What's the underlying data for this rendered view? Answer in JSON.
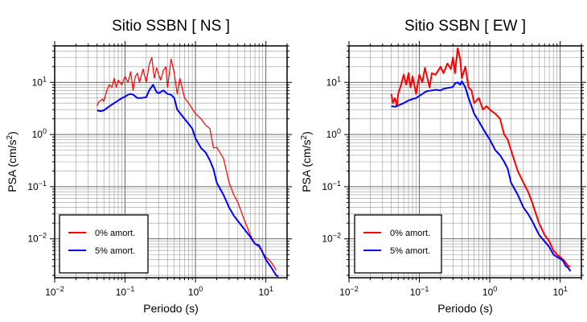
{
  "chart_data": [
    {
      "type": "line",
      "title": "Sitio SSBN [ NS ]",
      "xlabel": "Periodo (s)",
      "ylabel": "PSA (cm/s²)",
      "xscale": "log",
      "yscale": "log",
      "xlim": [
        0.01,
        20
      ],
      "ylim": [
        0.0018,
        50
      ],
      "grid": true,
      "legend_position": "bottom-left",
      "xticks": [
        {
          "base": "10",
          "exp": "−2",
          "value": 0.01
        },
        {
          "base": "10",
          "exp": "−1",
          "value": 0.1
        },
        {
          "base": "10",
          "exp": "0",
          "value": 1
        },
        {
          "base": "10",
          "exp": "1",
          "value": 10
        }
      ],
      "yticks": [
        {
          "base": "10",
          "exp": "−2",
          "value": 0.01
        },
        {
          "base": "10",
          "exp": "−1",
          "value": 0.1
        },
        {
          "base": "10",
          "exp": "0",
          "value": 1
        },
        {
          "base": "10",
          "exp": "1",
          "value": 10
        }
      ],
      "series": [
        {
          "name": "0% amort.",
          "color": "#ff0000",
          "width": 1.2,
          "x": [
            0.04,
            0.042,
            0.045,
            0.048,
            0.05,
            0.055,
            0.06,
            0.065,
            0.07,
            0.075,
            0.08,
            0.09,
            0.1,
            0.11,
            0.12,
            0.13,
            0.14,
            0.15,
            0.16,
            0.18,
            0.2,
            0.22,
            0.24,
            0.26,
            0.28,
            0.3,
            0.32,
            0.35,
            0.38,
            0.4,
            0.42,
            0.45,
            0.5,
            0.55,
            0.6,
            0.7,
            0.8,
            1.0,
            1.2,
            1.4,
            1.6,
            1.8,
            2.0,
            2.5,
            3.0,
            3.5,
            4.0,
            5.0,
            6.0,
            7.0,
            8.0,
            9.0,
            10.0,
            11.0,
            12.0,
            13.0,
            14.0
          ],
          "y": [
            3.5,
            4.2,
            4.5,
            4.8,
            4.3,
            7.0,
            9.0,
            8.0,
            12.0,
            8.0,
            11.0,
            9.0,
            13.0,
            10.0,
            16.0,
            7.0,
            13.0,
            15.0,
            10.0,
            18.0,
            10.0,
            22.0,
            30.0,
            12.0,
            19.0,
            14.0,
            11.0,
            17.0,
            20.0,
            8.0,
            13.0,
            28.0,
            15.0,
            6.0,
            12.0,
            5.0,
            4.0,
            2.5,
            2.0,
            1.5,
            1.3,
            0.55,
            0.57,
            0.35,
            0.12,
            0.07,
            0.05,
            0.022,
            0.012,
            0.008,
            0.007,
            0.0055,
            0.0045,
            0.004,
            0.0035,
            0.003,
            0.0025
          ]
        },
        {
          "name": "5% amort.",
          "color": "#0000ff",
          "width": 2,
          "x": [
            0.04,
            0.045,
            0.05,
            0.06,
            0.07,
            0.08,
            0.09,
            0.1,
            0.11,
            0.12,
            0.13,
            0.15,
            0.17,
            0.2,
            0.22,
            0.25,
            0.28,
            0.3,
            0.35,
            0.4,
            0.45,
            0.5,
            0.55,
            0.6,
            0.7,
            0.8,
            0.9,
            1.0,
            1.2,
            1.4,
            1.6,
            1.8,
            2.0,
            2.5,
            3.0,
            3.5,
            4.0,
            5.0,
            6.0,
            7.0,
            8.0,
            9.0,
            10.0,
            12.0,
            14.0,
            15.0
          ],
          "y": [
            2.9,
            2.8,
            2.9,
            3.5,
            4.0,
            4.5,
            5.0,
            5.3,
            5.8,
            6.0,
            5.8,
            5.0,
            5.0,
            5.2,
            7.0,
            9.0,
            6.5,
            6.2,
            7.0,
            6.0,
            5.8,
            5.0,
            3.0,
            2.6,
            2.0,
            1.6,
            1.3,
            0.85,
            0.55,
            0.45,
            0.32,
            0.22,
            0.12,
            0.07,
            0.04,
            0.028,
            0.022,
            0.015,
            0.011,
            0.008,
            0.0075,
            0.0055,
            0.004,
            0.0028,
            0.002,
            0.0019
          ]
        }
      ]
    },
    {
      "type": "line",
      "title": "Sitio SSBN [ EW ]",
      "xlabel": "Periodo (s)",
      "ylabel": "PSA (cm/s²)",
      "xscale": "log",
      "yscale": "log",
      "xlim": [
        0.01,
        20
      ],
      "ylim": [
        0.0018,
        50
      ],
      "grid": true,
      "legend_position": "bottom-left",
      "xticks": [
        {
          "base": "10",
          "exp": "−2",
          "value": 0.01
        },
        {
          "base": "10",
          "exp": "−1",
          "value": 0.1
        },
        {
          "base": "10",
          "exp": "0",
          "value": 1
        },
        {
          "base": "10",
          "exp": "1",
          "value": 10
        }
      ],
      "yticks": [
        {
          "base": "10",
          "exp": "−2",
          "value": 0.01
        },
        {
          "base": "10",
          "exp": "−1",
          "value": 0.1
        },
        {
          "base": "10",
          "exp": "0",
          "value": 1
        },
        {
          "base": "10",
          "exp": "1",
          "value": 10
        }
      ],
      "series": [
        {
          "name": "0% amort.",
          "color": "#ff0000",
          "width": 2,
          "x": [
            0.04,
            0.042,
            0.045,
            0.048,
            0.05,
            0.055,
            0.06,
            0.065,
            0.07,
            0.075,
            0.08,
            0.09,
            0.1,
            0.11,
            0.12,
            0.13,
            0.14,
            0.15,
            0.17,
            0.2,
            0.22,
            0.25,
            0.28,
            0.3,
            0.32,
            0.35,
            0.38,
            0.4,
            0.45,
            0.5,
            0.55,
            0.6,
            0.7,
            0.8,
            0.9,
            1.0,
            1.2,
            1.4,
            1.6,
            1.8,
            2.0,
            2.5,
            3.0,
            3.5,
            4.0,
            5.0,
            6.0,
            7.0,
            8.0,
            9.0,
            10.0,
            11.0,
            12.0,
            13.0,
            14.0
          ],
          "y": [
            6.0,
            4.0,
            5.0,
            3.5,
            6.0,
            9.0,
            14.0,
            9.0,
            15.0,
            8.0,
            13.0,
            6.0,
            14.0,
            10.0,
            19.0,
            12.0,
            8.0,
            15.0,
            14.0,
            20.0,
            15.0,
            23.0,
            18.0,
            30.0,
            15.0,
            45.0,
            28.0,
            12.0,
            20.0,
            8.0,
            7.0,
            4.0,
            5.0,
            3.0,
            3.5,
            3.0,
            2.5,
            2.0,
            1.0,
            0.8,
            0.5,
            0.2,
            0.12,
            0.08,
            0.05,
            0.02,
            0.012,
            0.009,
            0.006,
            0.005,
            0.0045,
            0.004,
            0.0035,
            0.003,
            0.003
          ]
        },
        {
          "name": "5% amort.",
          "color": "#0000ff",
          "width": 2,
          "x": [
            0.04,
            0.045,
            0.05,
            0.06,
            0.07,
            0.08,
            0.09,
            0.1,
            0.11,
            0.12,
            0.13,
            0.15,
            0.17,
            0.2,
            0.22,
            0.25,
            0.28,
            0.3,
            0.32,
            0.35,
            0.38,
            0.4,
            0.45,
            0.5,
            0.55,
            0.6,
            0.7,
            0.8,
            0.9,
            1.0,
            1.2,
            1.4,
            1.6,
            1.8,
            2.0,
            2.5,
            3.0,
            3.5,
            4.0,
            5.0,
            6.0,
            7.0,
            8.0,
            9.0,
            10.0,
            11.0,
            12.0,
            13.0,
            14.0
          ],
          "y": [
            3.5,
            3.4,
            3.6,
            4.0,
            4.5,
            4.8,
            5.0,
            5.5,
            6.0,
            6.5,
            6.8,
            7.0,
            7.2,
            7.0,
            7.5,
            7.8,
            8.0,
            8.2,
            9.5,
            10.0,
            9.0,
            10.5,
            8.0,
            5.0,
            3.5,
            2.5,
            1.8,
            1.3,
            1.0,
            0.8,
            0.5,
            0.4,
            0.3,
            0.22,
            0.12,
            0.07,
            0.04,
            0.03,
            0.022,
            0.012,
            0.009,
            0.007,
            0.005,
            0.0045,
            0.0042,
            0.0038,
            0.003,
            0.0028,
            0.0024
          ]
        }
      ]
    }
  ]
}
